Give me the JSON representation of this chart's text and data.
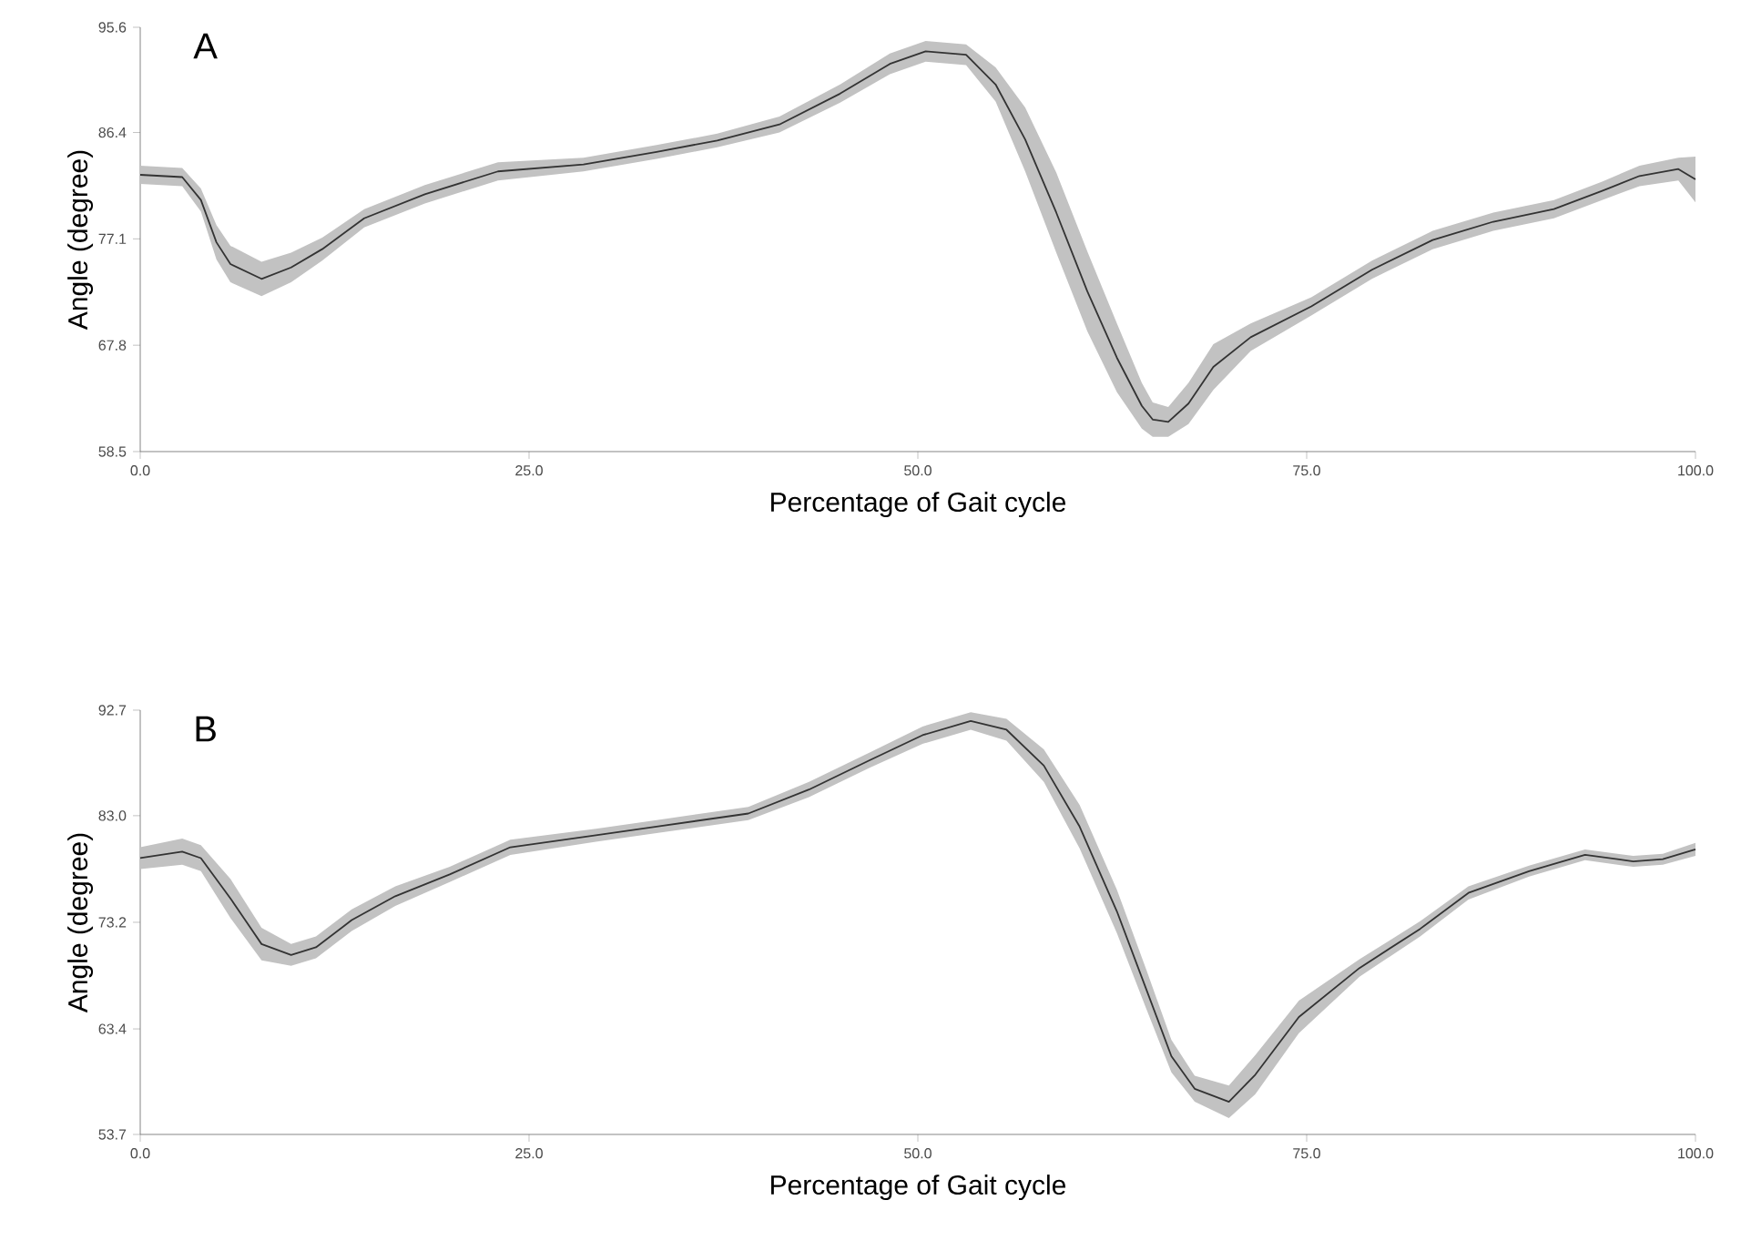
{
  "chart_data": [
    {
      "type": "line",
      "title": "A",
      "xlabel": "Percentage of Gait cycle",
      "ylabel": "Angle (degree)",
      "xlim": [
        0,
        100
      ],
      "ylim": [
        58.5,
        95.6
      ],
      "xticks": [
        {
          "value": 0,
          "label": "0.0"
        },
        {
          "value": 25,
          "label": "25.0"
        },
        {
          "value": 50,
          "label": "50.0"
        },
        {
          "value": 75,
          "label": "75.0"
        },
        {
          "value": 100,
          "label": "100.0"
        }
      ],
      "yticks": [
        58.5,
        67.8,
        77.1,
        86.4,
        95.6
      ],
      "grid": false,
      "x": [
        0,
        2.7,
        3.9,
        4.9,
        5.8,
        7.8,
        9.7,
        11.7,
        14.4,
        18.3,
        23.0,
        28.5,
        33.2,
        37.1,
        41.1,
        45.0,
        48.2,
        50.5,
        53.1,
        55.0,
        56.9,
        58.9,
        60.9,
        62.8,
        64.4,
        65.1,
        66.1,
        67.4,
        69.0,
        71.4,
        75.3,
        79.2,
        83.1,
        87.0,
        90.9,
        94.0,
        96.4,
        98.9,
        100
      ],
      "series": [
        {
          "color": "#333333",
          "values": [
            82.7,
            82.5,
            80.5,
            76.8,
            74.9,
            73.6,
            74.6,
            76.2,
            78.9,
            81.0,
            83.0,
            83.6,
            84.7,
            85.7,
            87.1,
            89.8,
            92.4,
            93.5,
            93.2,
            90.6,
            85.8,
            79.4,
            72.5,
            66.7,
            62.5,
            61.3,
            61.1,
            62.7,
            65.9,
            68.5,
            71.2,
            74.4,
            77.0,
            78.6,
            79.7,
            81.3,
            82.6,
            83.2,
            82.3
          ],
          "lower": [
            81.9,
            81.7,
            79.5,
            75.3,
            73.3,
            72.1,
            73.3,
            75.2,
            78.1,
            80.2,
            82.2,
            83.0,
            84.1,
            85.1,
            86.4,
            89.0,
            91.5,
            92.6,
            92.3,
            89.1,
            83.0,
            75.9,
            69.0,
            63.7,
            60.5,
            59.8,
            59.8,
            60.9,
            63.9,
            67.3,
            70.4,
            73.6,
            76.2,
            77.8,
            78.9,
            80.5,
            81.7,
            82.2,
            80.3
          ],
          "upper": [
            83.5,
            83.3,
            81.5,
            78.3,
            76.5,
            75.1,
            75.9,
            77.2,
            79.7,
            81.8,
            83.8,
            84.2,
            85.3,
            86.3,
            87.8,
            90.6,
            93.3,
            94.4,
            94.1,
            92.1,
            88.6,
            82.9,
            76.0,
            69.7,
            64.5,
            62.8,
            62.4,
            64.5,
            67.9,
            69.7,
            72.0,
            75.2,
            77.8,
            79.4,
            80.5,
            82.1,
            83.5,
            84.2,
            84.3
          ]
        }
      ]
    },
    {
      "type": "line",
      "title": "B",
      "xlabel": "Percentage of Gait cycle",
      "ylabel": "Angle (degree)",
      "xlim": [
        0,
        100
      ],
      "ylim": [
        53.7,
        92.7
      ],
      "xticks": [
        {
          "value": 0,
          "label": "0.0"
        },
        {
          "value": 25,
          "label": "25.0"
        },
        {
          "value": 50,
          "label": "50.0"
        },
        {
          "value": 75,
          "label": "75.0"
        },
        {
          "value": 100,
          "label": "100.0"
        }
      ],
      "yticks": [
        53.7,
        63.4,
        73.2,
        {
          "value": 83.0,
          "label": "83.0"
        },
        92.7
      ],
      "grid": false,
      "x": [
        0,
        2.7,
        3.9,
        5.8,
        7.8,
        9.7,
        11.3,
        13.6,
        16.4,
        19.9,
        23.8,
        29.3,
        33.2,
        39.1,
        43.0,
        46.9,
        50.3,
        53.4,
        55.7,
        58.1,
        60.4,
        62.8,
        64.7,
        66.3,
        67.8,
        70.0,
        71.7,
        74.5,
        78.4,
        82.3,
        85.4,
        89.3,
        92.9,
        96.0,
        97.9,
        100
      ],
      "series": [
        {
          "color": "#333333",
          "values": [
            79.1,
            79.7,
            79.1,
            75.4,
            71.2,
            70.2,
            70.9,
            73.4,
            75.6,
            77.6,
            80.1,
            81.2,
            82.0,
            83.2,
            85.4,
            88.1,
            90.4,
            91.7,
            90.9,
            87.6,
            82.0,
            74.2,
            67.0,
            60.9,
            57.9,
            56.7,
            59.2,
            64.5,
            69.0,
            72.6,
            75.9,
            77.9,
            79.4,
            78.8,
            79.0,
            79.9
          ],
          "lower": [
            78.1,
            78.5,
            77.9,
            73.6,
            69.7,
            69.2,
            69.9,
            72.4,
            74.7,
            76.9,
            79.4,
            80.6,
            81.4,
            82.6,
            84.7,
            87.4,
            89.6,
            90.9,
            89.9,
            86.1,
            80.0,
            72.2,
            65.2,
            59.4,
            56.7,
            55.2,
            57.4,
            63.0,
            68.2,
            71.9,
            75.3,
            77.4,
            78.9,
            78.3,
            78.5,
            79.3
          ],
          "upper": [
            80.1,
            80.9,
            80.3,
            77.2,
            72.7,
            71.2,
            71.9,
            74.4,
            76.5,
            78.3,
            80.8,
            81.8,
            82.6,
            83.8,
            86.1,
            88.8,
            91.2,
            92.5,
            91.9,
            89.1,
            84.0,
            76.2,
            68.8,
            62.4,
            59.1,
            58.2,
            61.0,
            66.0,
            69.8,
            73.3,
            76.5,
            78.4,
            79.9,
            79.3,
            79.5,
            80.5
          ]
        }
      ]
    }
  ]
}
